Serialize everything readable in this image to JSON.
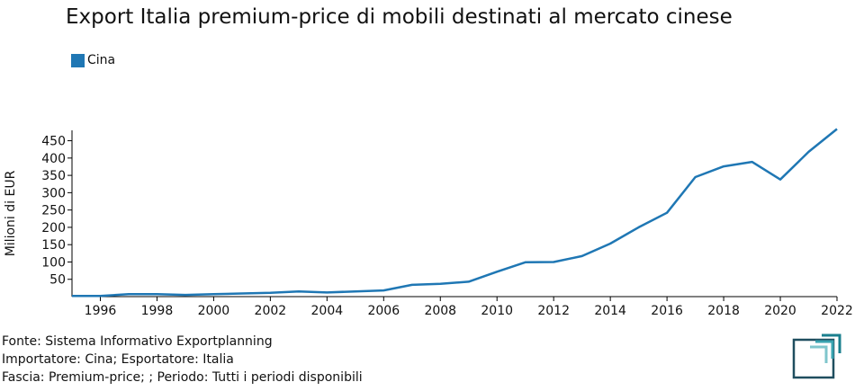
{
  "title": "Export Italia premium-price di mobili destinati al mercato cinese",
  "legend": {
    "label": "Cina",
    "color": "#1f77b4"
  },
  "notes": [
    "Fonte: Sistema Informativo Exportplanning",
    "Importatore: Cina; Esportatore: Italia",
    "Fascia: Premium-price; ; Periodo: Tutti i periodi disponibili"
  ],
  "chart_data": {
    "type": "line",
    "title": "Export Italia premium-price di mobili destinati al mercato cinese",
    "xlabel": "",
    "ylabel": "Milioni di EUR",
    "xlim": [
      1995,
      2022
    ],
    "ylim": [
      0,
      480
    ],
    "x_ticks": [
      1996,
      1998,
      2000,
      2002,
      2004,
      2006,
      2008,
      2010,
      2012,
      2014,
      2016,
      2018,
      2020,
      2022
    ],
    "y_ticks": [
      50,
      100,
      150,
      200,
      250,
      300,
      350,
      400,
      450
    ],
    "grid": false,
    "legend_position": "top-left",
    "x": [
      1995,
      1996,
      1997,
      1998,
      1999,
      2000,
      2001,
      2002,
      2003,
      2004,
      2005,
      2006,
      2007,
      2008,
      2009,
      2010,
      2011,
      2012,
      2013,
      2014,
      2015,
      2016,
      2017,
      2018,
      2019,
      2020,
      2021,
      2022
    ],
    "series": [
      {
        "name": "Cina",
        "color": "#1f77b4",
        "values": [
          2,
          2,
          7,
          7,
          5,
          7,
          9,
          11,
          15,
          12,
          15,
          18,
          34,
          37,
          43,
          72,
          99,
          100,
          117,
          153,
          200,
          242,
          345,
          376,
          389,
          338,
          418,
          484
        ]
      }
    ]
  }
}
